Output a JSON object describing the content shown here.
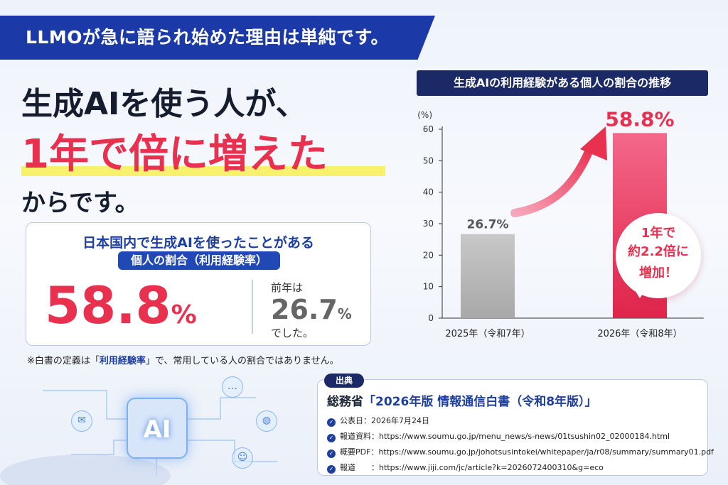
{
  "banner": {
    "text": "LLMOが急に語られ始めた理由は単純です。"
  },
  "headline": {
    "line1": "生成AIを使う人が、",
    "line2": "1年で倍に増えた",
    "line3": "からです。"
  },
  "stat": {
    "line1": "日本国内で生成AIを使ったことがある",
    "pill": "個人の割合（利用経験率）",
    "value": "58.8",
    "unit": "%",
    "prev_label": "前年は",
    "prev_value": "26.7",
    "prev_unit": "%",
    "prev_suffix": "でした。"
  },
  "note": {
    "prefix": "※白書の定義は「",
    "accent": "利用経験率",
    "suffix": "」で、常用している人の割合ではありません。"
  },
  "deco": {
    "chip_label": "AI"
  },
  "chart_title": "生成AIの利用経験がある個人の割合の推移",
  "chart_data": {
    "type": "bar",
    "title": "生成AIの利用経験がある個人の割合の推移",
    "ylabel": "(%)",
    "xlabel": "",
    "categories": [
      "2025年（令和7年）",
      "2026年（令和8年）"
    ],
    "values": [
      26.7,
      58.8
    ],
    "value_labels": [
      "26.7%",
      "58.8%"
    ],
    "ylim": [
      0,
      60
    ],
    "yticks": [
      0,
      10,
      20,
      30,
      40,
      50,
      60
    ],
    "grid": false,
    "colors": [
      "#b4b4b4",
      "#e8304f"
    ]
  },
  "badge": {
    "line1": "1年で",
    "line2": "約2.2倍に",
    "line3": "増加！"
  },
  "source": {
    "tag": "出典",
    "title_prefix": "総務省",
    "title_doc": "「2026年版 情報通信白書（令和8年版）」",
    "rows": [
      {
        "label": "公表日：",
        "value": "2026年7月24日"
      },
      {
        "label": "報道資料：",
        "value": "https://www.soumu.go.jp/menu_news/s-news/01tsushin02_02000184.html"
      },
      {
        "label": "概要PDF：",
        "value": "https://www.soumu.go.jp/johotsusintokei/whitepaper/ja/r08/summary/summary01.pdf"
      },
      {
        "label": "報道　　：",
        "value": "https://www.jiji.com/jc/article?k=2026072400310&g=eco"
      }
    ]
  },
  "colors": {
    "brand_blue": "#1b3aa7",
    "accent_red": "#e8304f",
    "navy": "#1b2a66"
  }
}
